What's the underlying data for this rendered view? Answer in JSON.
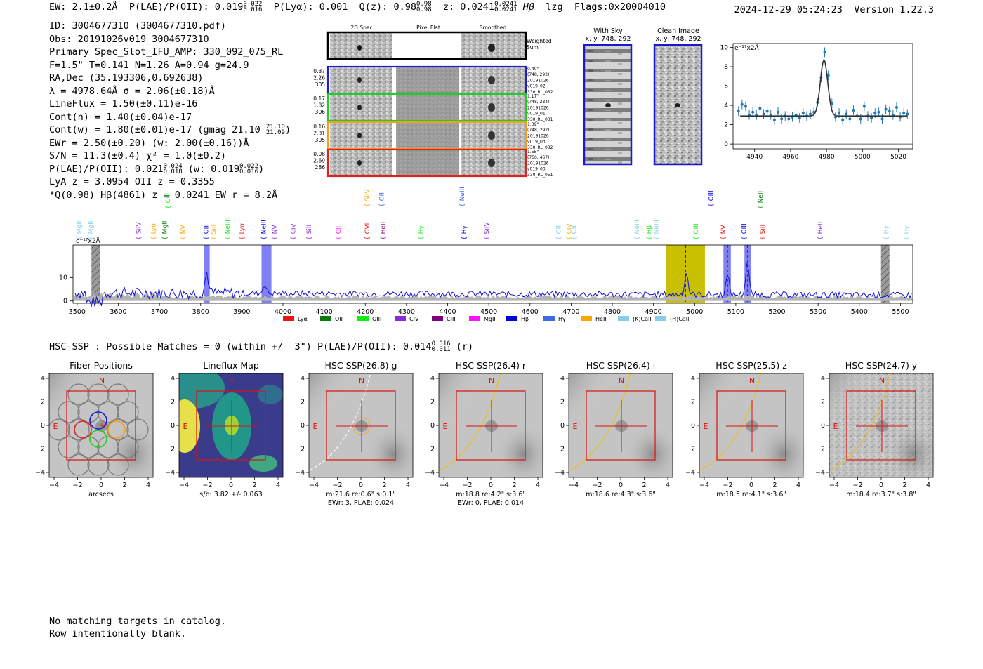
{
  "header": {
    "ew": "EW: 2.1±0.2Å",
    "plae_label": "P(LAE)/P(OII): 0.019",
    "plae_hi": "0.022",
    "plae_lo": "0.016",
    "plya": "P(Lyα): 0.001",
    "qz_label": "Q(z): 0.98",
    "qz_hi": "0.98",
    "qz_lo": "0.98",
    "z_label": "z: 0.0241",
    "z_hi": "0.0241",
    "z_lo": "0.0241",
    "line": "Hβ",
    "tag": "lzg",
    "flags": "Flags:0x20004010",
    "datetime": "2024-12-29 05:24:23",
    "version": "Version 1.22.3"
  },
  "info": {
    "id": "ID: 3004677310 (3004677310.pdf)",
    "obs": "Obs: 20191026v019_3004677310",
    "spec_slot": "Primary Spec_Slot_IFU_AMP: 330_092_075_RL",
    "fwhm": "F=1.5\"  T=0.141  N=1.26  A=0.94  g=24.9",
    "radec": "RA,Dec (35.193306,0.692638)",
    "lambda": "λ = 4978.64Å  σ = 2.06(±0.18)Å",
    "lineflux": "LineFlux = 1.50(±0.11)e-16",
    "contn": "Cont(n) = 1.40(±0.04)e-17",
    "contw": "Cont(w) = 1.80(±0.01)e-17 (gmag 21.10",
    "contw_hi": "21.10",
    "contw_lo": "21.09",
    "contw_end": ")",
    "ewr": "EWr = 2.50(±0.20) (w: 2.00(±0.16))Å",
    "sn": "S/N = 11.3(±0.4)  χ² = 1.0(±0.2)",
    "plae": "P(LAE)/P(OII): 0.021",
    "plae_hi": "0.024",
    "plae_lo": "0.018",
    "plae_w": "(w: 0.019",
    "plae_w_hi": "0.022",
    "plae_w_lo": "0.016",
    "plae_w_end": ")",
    "lya_z": "LyA z = 3.0954  OII z = 0.3355",
    "best": "*Q(0.98) Hβ(4861) z = 0.0241  EW r = 8.2Å"
  },
  "cutouts": {
    "col_2d": "2D Spec",
    "col_flat": "Pixel Flat",
    "col_smooth": "Smoothed",
    "weighted": "Weighted",
    "sum": "Sum",
    "rows": [
      {
        "v1": "0.37",
        "v2": "2.26",
        "v3": "305",
        "r1": "0.40\"",
        "r2": "(748, 292)",
        "r3": "20191026",
        "r4": "v019_02",
        "r5": "330_RL_032",
        "color": "#1f1fd0"
      },
      {
        "v1": "0.17",
        "v2": "1.82",
        "v3": "306",
        "r1": "1.17\"",
        "r2": "(748, 284)",
        "r3": "20191026",
        "r4": "v019_01",
        "r5": "330_RL_031",
        "color": "#22cc22"
      },
      {
        "v1": "0.16",
        "v2": "2.31",
        "v3": "305",
        "r1": "1.09\"",
        "r2": "(748, 292)",
        "r3": "20191026",
        "r4": "v019_03",
        "r5": "330_RL_032",
        "color": "#f0a020"
      },
      {
        "v1": "0.08",
        "v2": "2.69",
        "v3": "286",
        "r1": "1.55\"",
        "r2": "(750, 467)",
        "r3": "20191026",
        "r4": "v019_03",
        "r5": "330_RL_051",
        "color": "#e02020"
      }
    ]
  },
  "sky": {
    "with_sky": "With Sky",
    "with_sky_xy": "x, y: 748, 292",
    "clean": "Clean Image",
    "clean_xy": "x, y: 748, 292"
  },
  "zoom_chart": {
    "ylabel": "e⁻¹⁷x2Å",
    "xlim": [
      4928,
      5028
    ],
    "ylim": [
      -0.5,
      10.4
    ],
    "xticks": [
      "4940",
      "4960",
      "4980",
      "5000",
      "5020"
    ],
    "yticks": [
      "0",
      "2",
      "4",
      "6",
      "8",
      "10"
    ]
  },
  "chart_data": [
    {
      "type": "scatter",
      "title": "",
      "ylabel": "e⁻¹⁷x2Å",
      "xlim": [
        4928,
        5028
      ],
      "ylim": [
        -0.5,
        10.4
      ],
      "x": [
        4931,
        4933,
        4935,
        4937,
        4939,
        4941,
        4943,
        4945,
        4947,
        4949,
        4951,
        4953,
        4955,
        4957,
        4959,
        4961,
        4963,
        4965,
        4967,
        4969,
        4971,
        4973,
        4975,
        4977,
        4979,
        4981,
        4983,
        4985,
        4987,
        4989,
        4991,
        4993,
        4995,
        4997,
        4999,
        5001,
        5003,
        5005,
        5007,
        5009,
        5011,
        5013,
        5015,
        5017,
        5019,
        5021,
        5023,
        5025
      ],
      "y": [
        3.4,
        4.1,
        3.9,
        3.0,
        3.3,
        3.0,
        3.7,
        3.1,
        3.4,
        3.0,
        2.5,
        3.3,
        2.6,
        2.9,
        2.6,
        2.8,
        3.0,
        2.7,
        3.2,
        2.9,
        3.1,
        3.3,
        4.3,
        6.9,
        9.5,
        7.1,
        4.2,
        2.8,
        3.2,
        2.5,
        3.1,
        2.6,
        3.5,
        2.9,
        2.6,
        3.9,
        2.9,
        2.7,
        3.2,
        3.3,
        2.6,
        3.6,
        3.4,
        3.0,
        3.8,
        2.8,
        3.2,
        3.1
      ],
      "yerr": 0.5,
      "fit": {
        "center": 4978.6,
        "sigma": 2.06,
        "amplitude": 5.8,
        "continuum": 2.9
      }
    },
    {
      "type": "line",
      "title": "",
      "ylabel": "e⁻¹⁷x2Å",
      "xlim": [
        3490,
        5530
      ],
      "ylim": [
        -1,
        24
      ],
      "xticks": [
        3500,
        3600,
        3700,
        3800,
        3900,
        4000,
        4100,
        4200,
        4300,
        4400,
        4500,
        4600,
        4700,
        4800,
        4900,
        5000,
        5100,
        5200,
        5300,
        5400,
        5500
      ],
      "yticks": [
        0,
        10
      ],
      "emission_peaks": [
        {
          "x": 3815,
          "height": 9
        },
        {
          "x": 3955,
          "height": 4
        },
        {
          "x": 4980,
          "height": 9.5
        },
        {
          "x": 5080,
          "height": 8
        },
        {
          "x": 5128,
          "height": 14
        }
      ],
      "continuum": 3.5,
      "highlight_band": [
        4930,
        5025
      ],
      "highlight_line": 4978,
      "hatched": [
        3545,
        5463
      ],
      "blue_bands": [
        [
          3808,
          3822
        ],
        [
          3948,
          3972
        ],
        [
          5070,
          5088
        ],
        [
          5121,
          5137
        ]
      ],
      "legend": [
        "Lyα",
        "OII",
        "OIII",
        "CIV",
        "CIII",
        "MgII",
        "Hβ",
        "Hγ",
        "HeII",
        "(K)CaII",
        "(H)CaII"
      ],
      "legend_colors": [
        "#ee1111",
        "#0a7a0a",
        "#11ee11",
        "#8a2be2",
        "#800080",
        "#ff11ff",
        "#0000dd",
        "#4169e1",
        "#ffa500",
        "#87ceeb",
        "#87ceeb"
      ],
      "lines": [
        {
          "name": "MgII",
          "x": 3510,
          "row": 2,
          "color": "#87ceeb"
        },
        {
          "name": "MgII",
          "x": 3538,
          "row": 2,
          "color": "#87ceeb"
        },
        {
          "name": "SiIV",
          "x": 3655,
          "row": 2,
          "color": "#8a2be2"
        },
        {
          "name": "Lyα",
          "x": 3690,
          "row": 2,
          "color": "#ffa500"
        },
        {
          "name": "MgII",
          "x": 3718,
          "row": 2,
          "color": "#0a7a0a"
        },
        {
          "name": "OII",
          "x": 3725,
          "row": 0,
          "color": "#11ee11"
        },
        {
          "name": "NV",
          "x": 3762,
          "row": 2,
          "color": "#ffa500"
        },
        {
          "name": "OII",
          "x": 3818,
          "row": 2,
          "color": "#0000dd"
        },
        {
          "name": "SiII",
          "x": 3836,
          "row": 2,
          "color": "#ffa500"
        },
        {
          "name": "NeIII",
          "x": 3870,
          "row": 2,
          "color": "#11ee11"
        },
        {
          "name": "Lyα",
          "x": 3905,
          "row": 2,
          "color": "#ee1111"
        },
        {
          "name": "NeIII",
          "x": 3958,
          "row": 2,
          "color": "#0000dd"
        },
        {
          "name": "NV",
          "x": 3985,
          "row": 2,
          "color": "#8a2be2"
        },
        {
          "name": "CIV",
          "x": 4030,
          "row": 2,
          "color": "#8a2be2"
        },
        {
          "name": "SiII",
          "x": 4068,
          "row": 2,
          "color": "#8a2be2"
        },
        {
          "name": "CII",
          "x": 4140,
          "row": 2,
          "color": "#ff11ff"
        },
        {
          "name": "SiIV",
          "x": 4210,
          "row": 1,
          "color": "#ffa500"
        },
        {
          "name": "OVI",
          "x": 4210,
          "row": 2,
          "color": "#ee1111"
        },
        {
          "name": "OII",
          "x": 4245,
          "row": 1,
          "color": "#4169e1"
        },
        {
          "name": "HeII",
          "x": 4248,
          "row": 2,
          "color": "#800080"
        },
        {
          "name": "Hγ",
          "x": 4340,
          "row": 2,
          "color": "#11ee11"
        },
        {
          "name": "NeIII",
          "x": 4440,
          "row": 1,
          "color": "#4169e1"
        },
        {
          "name": "Hγ",
          "x": 4445,
          "row": 2,
          "color": "#0000dd"
        },
        {
          "name": "SiIV",
          "x": 4500,
          "row": 2,
          "color": "#8a2be2"
        },
        {
          "name": "OII",
          "x": 4675,
          "row": 2,
          "color": "#87ceeb"
        },
        {
          "name": "CIV",
          "x": 4700,
          "row": 2,
          "color": "#ffa500"
        },
        {
          "name": "OII",
          "x": 4712,
          "row": 2,
          "color": "#87ceeb"
        },
        {
          "name": "NeIII",
          "x": 4865,
          "row": 2,
          "color": "#87ceeb"
        },
        {
          "name": "Hβ",
          "x": 4895,
          "row": 2,
          "color": "#11ee11"
        },
        {
          "name": "NeIII",
          "x": 4912,
          "row": 2,
          "color": "#87ceeb"
        },
        {
          "name": "OIII",
          "x": 5008,
          "row": 2,
          "color": "#11ee11"
        },
        {
          "name": "OIII",
          "x": 5045,
          "row": 1,
          "color": "#0000dd"
        },
        {
          "name": "NV",
          "x": 5075,
          "row": 2,
          "color": "#ee1111"
        },
        {
          "name": "OIII",
          "x": 5125,
          "row": 2,
          "color": "#0000dd"
        },
        {
          "name": "NeIII",
          "x": 5165,
          "row": 0,
          "color": "#0a7a0a"
        },
        {
          "name": "SiII",
          "x": 5170,
          "row": 2,
          "color": "#ee1111"
        },
        {
          "name": "HeII",
          "x": 5310,
          "row": 2,
          "color": "#8a2be2"
        },
        {
          "name": "Hγ",
          "x": 5470,
          "row": 2,
          "color": "#87ceeb"
        },
        {
          "name": "Hγ",
          "x": 5520,
          "row": 2,
          "color": "#87ceeb"
        }
      ]
    }
  ],
  "hsc": {
    "title": "HSC-SSP : Possible Matches = 0 (within +/- 3\")  P(LAE)/P(OII): 0.014",
    "plae_hi": "0.016",
    "plae_lo": "0.011",
    "band": "(r)",
    "north": "N",
    "east": "E",
    "axis_ticks": [
      "−4",
      "−2",
      "0",
      "2",
      "4"
    ],
    "panels": [
      {
        "title": "Fiber Positions",
        "cap1": "arcsecs",
        "cap2": "",
        "kind": "fiber"
      },
      {
        "title": "Lineflux Map",
        "cap1": "s/b: 3.82 +/- 0.063",
        "cap2": "",
        "kind": "flux"
      },
      {
        "title": "HSC SSP(26.8) g",
        "cap1": "m:21.6  re:0.6\"  s:0.1\"",
        "cap2": "EWr: 3, PLAE: 0.024",
        "kind": "g"
      },
      {
        "title": "HSC SSP(26.4) r",
        "cap1": "m:18.8  re:4.2\"  s:3.6\"",
        "cap2": "EWr: 0, PLAE: 0.014",
        "kind": "r"
      },
      {
        "title": "HSC SSP(26.4) i",
        "cap1": "m:18.6  re:4.3\"  s:3.6\"",
        "cap2": "",
        "kind": "i"
      },
      {
        "title": "HSC SSP(25.5) z",
        "cap1": "m:18.5  re:4.1\"  s:3.6\"",
        "cap2": "",
        "kind": "z"
      },
      {
        "title": "HSC SSP(24.7) y",
        "cap1": "m:18.4  re:3.7\"  s:3.8\"",
        "cap2": "",
        "kind": "y"
      }
    ]
  },
  "footer": {
    "line1": "No matching targets in catalog.",
    "line2": "Row intentionally blank."
  }
}
